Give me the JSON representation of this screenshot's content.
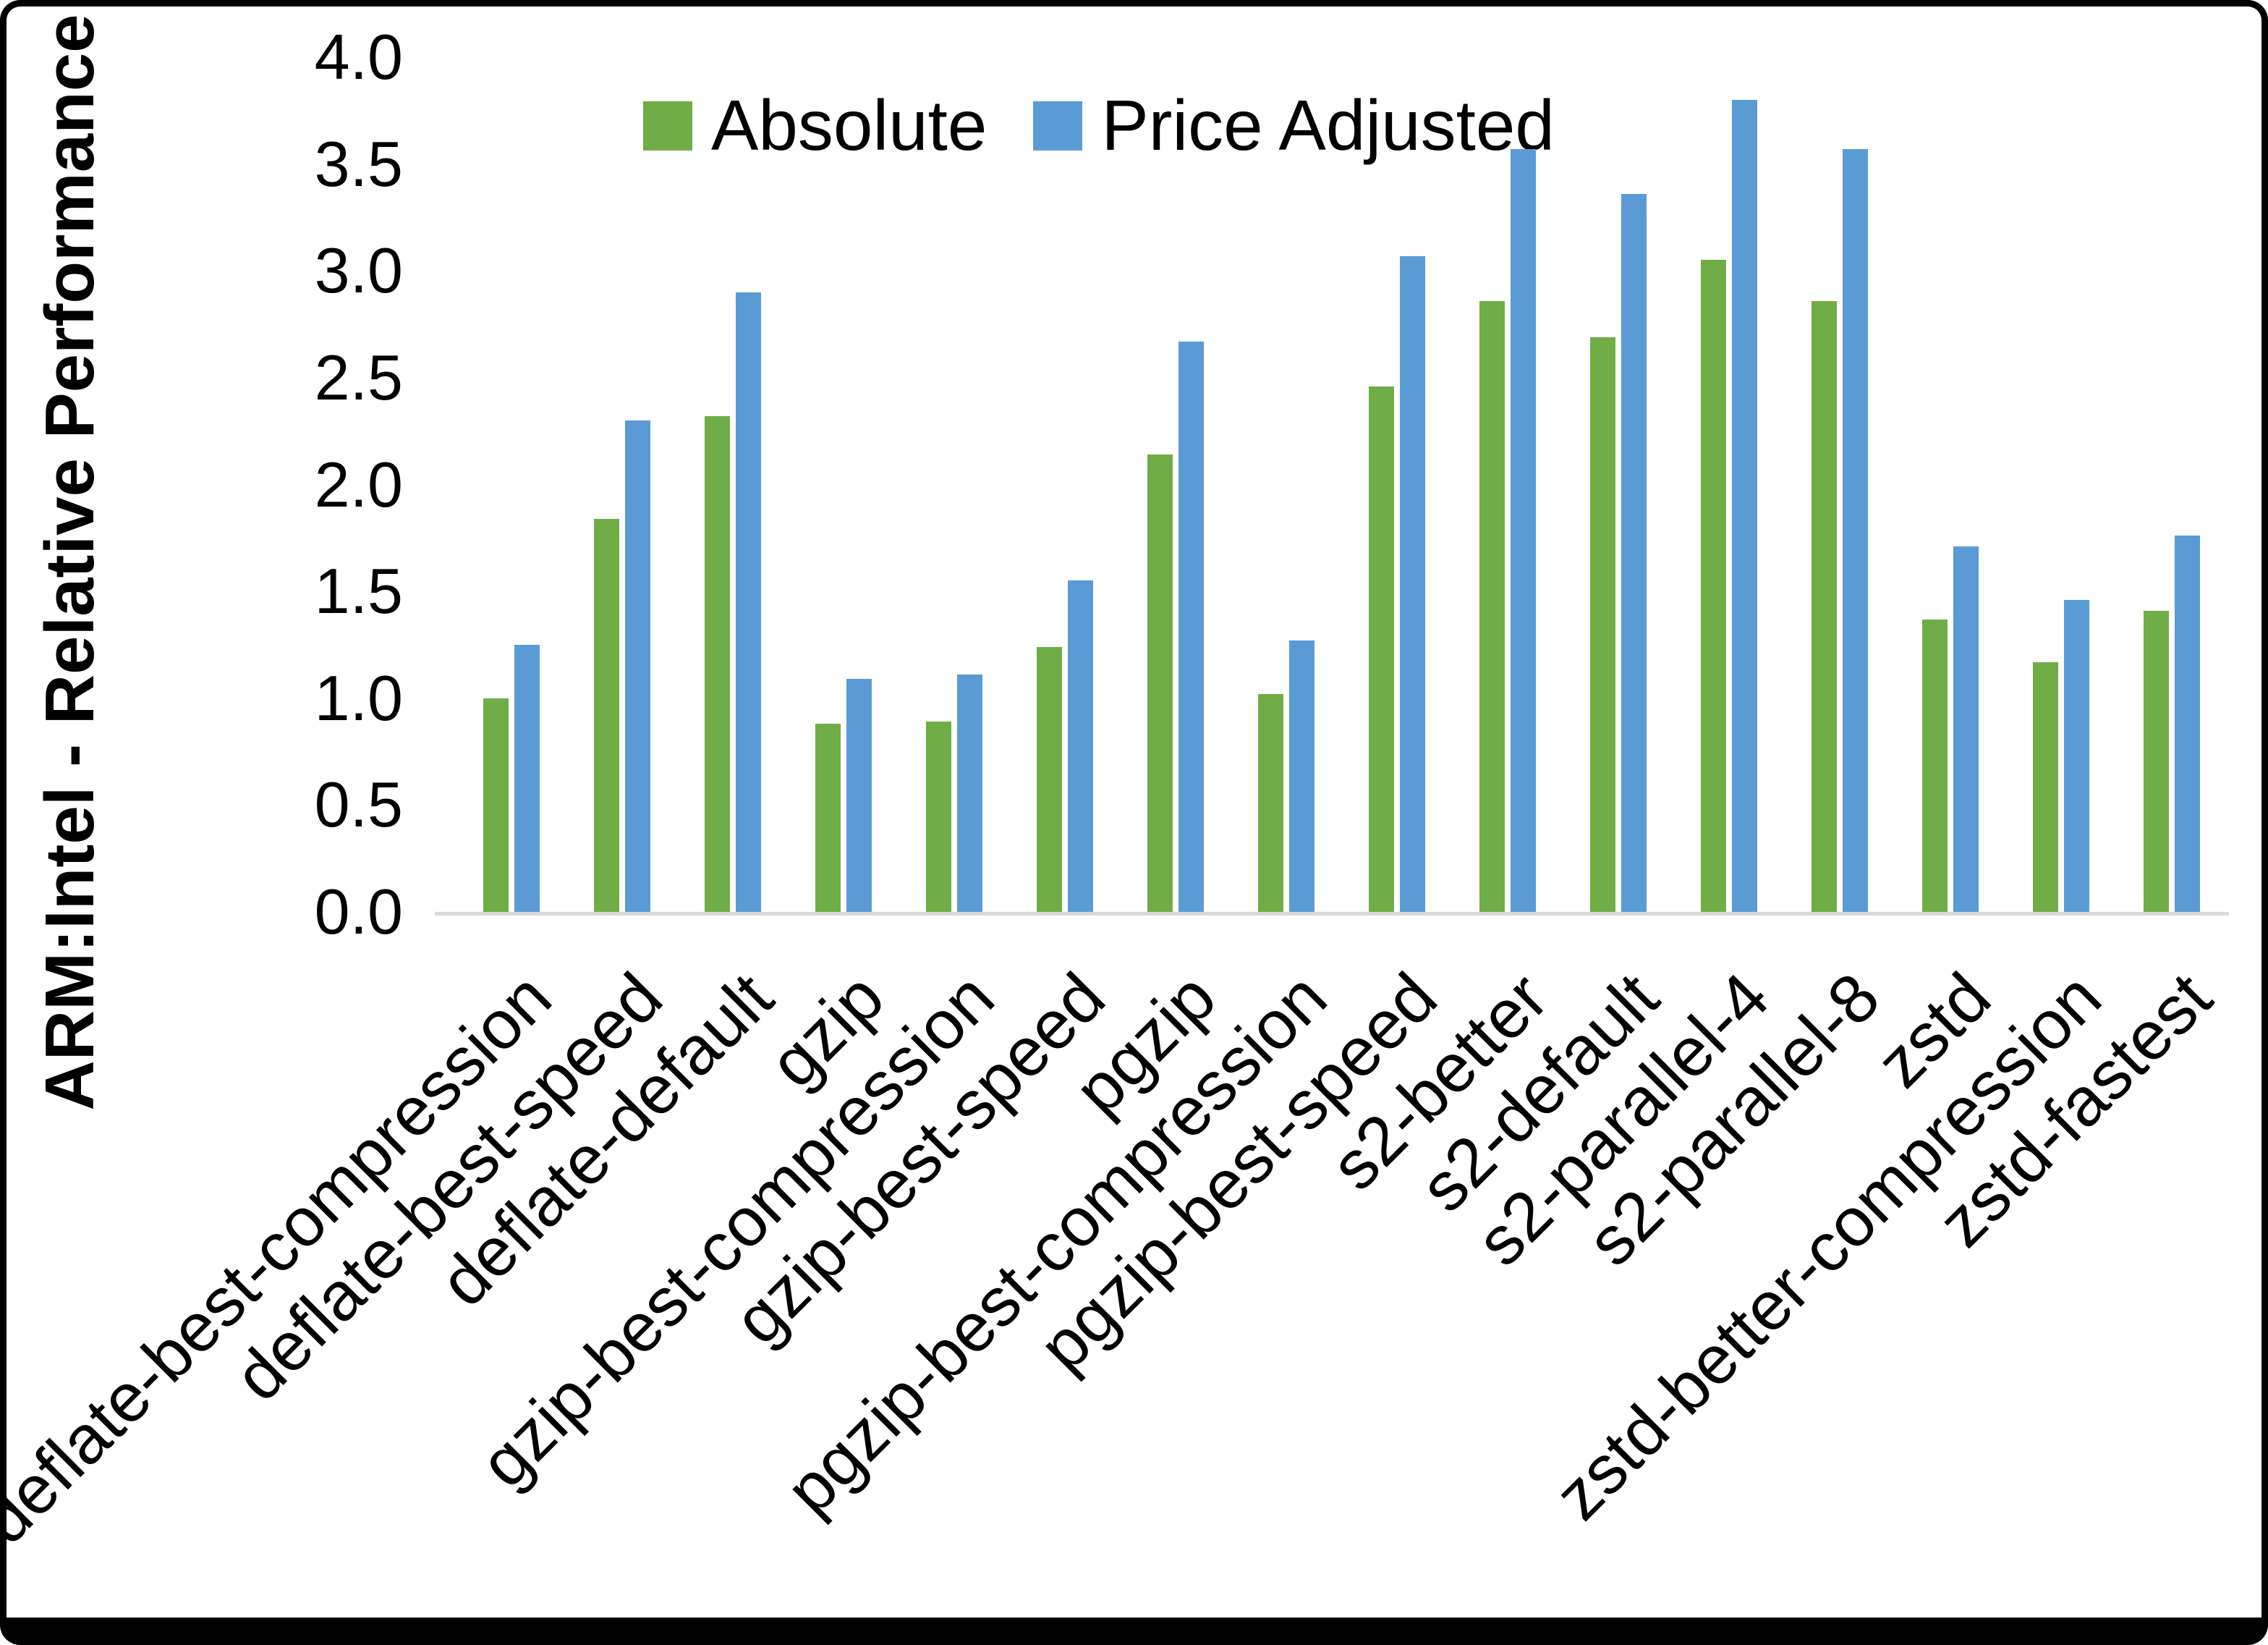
{
  "colors": {
    "absolute": "#70AD47",
    "price_adjusted": "#5B9BD5",
    "axis_line": "#D9D9D9",
    "text": "#000000"
  },
  "legend": {
    "position": "top-center",
    "items": [
      {
        "label": "Absolute",
        "color_key": "absolute"
      },
      {
        "label": "Price Adjusted",
        "color_key": "price_adjusted"
      }
    ]
  },
  "chart_data": {
    "type": "bar",
    "title": "",
    "xlabel": "",
    "ylabel": "ARM:Intel - Relative Performance",
    "ylim": [
      0.0,
      4.0
    ],
    "ytick_step": 0.5,
    "yticks": [
      "0.0",
      "0.5",
      "1.0",
      "1.5",
      "2.0",
      "2.5",
      "3.0",
      "3.5",
      "4.0"
    ],
    "grid": false,
    "legend_position": "top-center",
    "categories": [
      "deflate-best-compression",
      "deflate-best-speed",
      "deflate-default",
      "gzip",
      "gzip-best-compression",
      "gzip-best-speed",
      "pgzip",
      "pgzip-best-compression",
      "pgzip-best-speed",
      "s2-better",
      "s2-default",
      "s2-parallel-4",
      "s2-parallel-8",
      "zstd",
      "zstd-better-compression",
      "zstd-fastest"
    ],
    "series": [
      {
        "name": "Absolute",
        "color": "#70AD47",
        "values": [
          1.0,
          1.84,
          2.32,
          0.88,
          0.89,
          1.24,
          2.14,
          1.02,
          2.46,
          2.86,
          2.69,
          3.05,
          2.86,
          1.37,
          1.17,
          1.41
        ]
      },
      {
        "name": "Price Adjusted",
        "color": "#5B9BD5",
        "values": [
          1.25,
          2.3,
          2.9,
          1.09,
          1.11,
          1.55,
          2.67,
          1.27,
          3.07,
          3.57,
          3.36,
          3.8,
          3.57,
          1.71,
          1.46,
          1.76
        ]
      }
    ]
  }
}
